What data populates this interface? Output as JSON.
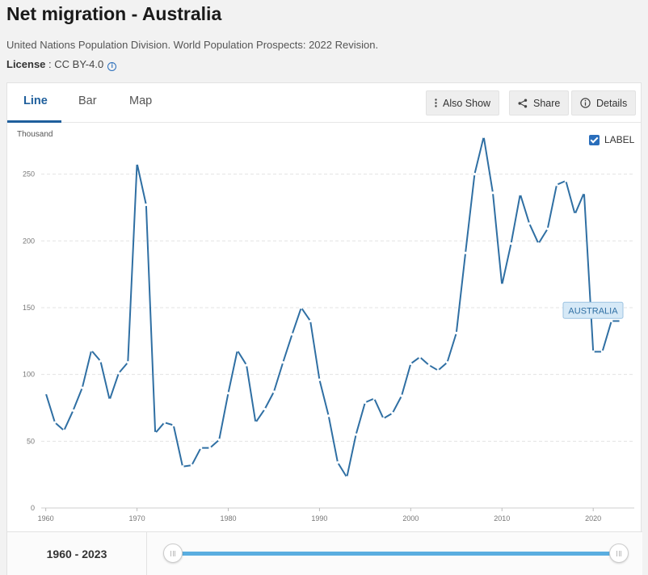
{
  "header": {
    "title": "Net migration - Australia",
    "source": "United Nations Population Division. World Population Prospects: 2022 Revision.",
    "license_label": "License",
    "license_value": " : CC BY-4.0"
  },
  "tabs": [
    {
      "label": "Line",
      "active": true
    },
    {
      "label": "Bar",
      "active": false
    },
    {
      "label": "Map",
      "active": false
    }
  ],
  "toolbar": {
    "also_show": "Also Show",
    "share": "Share",
    "details": "Details"
  },
  "label_toggle": {
    "label": "LABEL",
    "checked": true
  },
  "range": {
    "label": "1960 - 2023",
    "start": 1960,
    "end": 2023
  },
  "colors": {
    "line": "#2f6fa3",
    "accent": "#1f5f9c",
    "slider": "#5aaee0",
    "series_label_bg": "#d6e9f7"
  },
  "chart_data": {
    "type": "line",
    "ylabel": "Thousand",
    "ylim": [
      0,
      280
    ],
    "yticks": [
      0,
      50,
      100,
      150,
      200,
      250
    ],
    "xlim": [
      1959.5,
      2024.5
    ],
    "xticks": [
      1960,
      1970,
      1980,
      1990,
      2000,
      2010,
      2020
    ],
    "grid": true,
    "series": [
      {
        "name": "AUSTRALIA",
        "x": [
          1960,
          1961,
          1962,
          1963,
          1964,
          1965,
          1966,
          1967,
          1968,
          1969,
          1970,
          1971,
          1972,
          1973,
          1974,
          1975,
          1976,
          1977,
          1978,
          1979,
          1980,
          1981,
          1982,
          1983,
          1984,
          1985,
          1986,
          1987,
          1988,
          1989,
          1990,
          1991,
          1992,
          1993,
          1994,
          1995,
          1996,
          1997,
          1998,
          1999,
          2000,
          2001,
          2002,
          2003,
          2004,
          2005,
          2006,
          2007,
          2008,
          2009,
          2010,
          2011,
          2012,
          2013,
          2014,
          2015,
          2016,
          2017,
          2018,
          2019,
          2020,
          2021,
          2022,
          2023
        ],
        "values": [
          86,
          64,
          58,
          73,
          90,
          118,
          110,
          81,
          101,
          109,
          258,
          227,
          56,
          64,
          62,
          31,
          32,
          45,
          45,
          51,
          86,
          118,
          107,
          64,
          74,
          87,
          109,
          130,
          150,
          140,
          96,
          69,
          34,
          23,
          55,
          79,
          82,
          67,
          71,
          84,
          108,
          113,
          107,
          103,
          109,
          131,
          191,
          250,
          278,
          236,
          167,
          198,
          235,
          213,
          198,
          209,
          242,
          245,
          220,
          236,
          117,
          117,
          140,
          140
        ]
      }
    ]
  }
}
